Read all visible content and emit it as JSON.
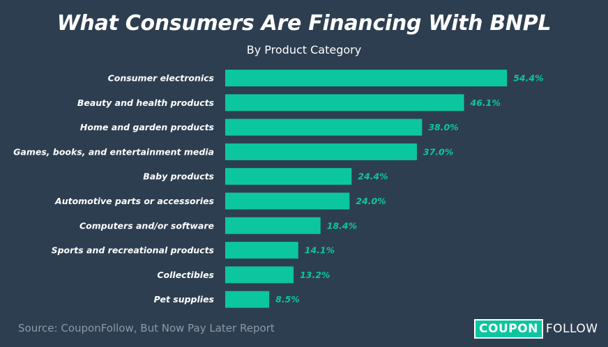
{
  "chart_data": {
    "type": "bar",
    "orientation": "horizontal",
    "title": "What Consumers Are Financing With BNPL",
    "subtitle": "By Product Category",
    "categories": [
      "Consumer electronics",
      "Beauty and health products",
      "Home and garden products",
      "Games, books, and entertainment media",
      "Baby products",
      "Automotive parts or accessories",
      "Computers and/or software",
      "Sports and recreational products",
      "Collectibles",
      "Pet supplies"
    ],
    "values": [
      54.4,
      46.1,
      38.0,
      37.0,
      24.4,
      24.0,
      18.4,
      14.1,
      13.2,
      8.5
    ],
    "data_labels": [
      "54.4%",
      "46.1%",
      "38.0%",
      "37.0%",
      "24.4%",
      "24.0%",
      "18.4%",
      "14.1%",
      "13.2%",
      "8.5%"
    ],
    "value_unit": "%",
    "grid": false,
    "legend": "none",
    "bar_color": "#0cc6a0",
    "label_color": "#0cc6a0",
    "background_color": "#2d3e50"
  },
  "footer": {
    "source": "Source: CouponFollow, But Now Pay Later Report",
    "logo_coupon": "COUPON",
    "logo_follow": "FOLLOW"
  }
}
